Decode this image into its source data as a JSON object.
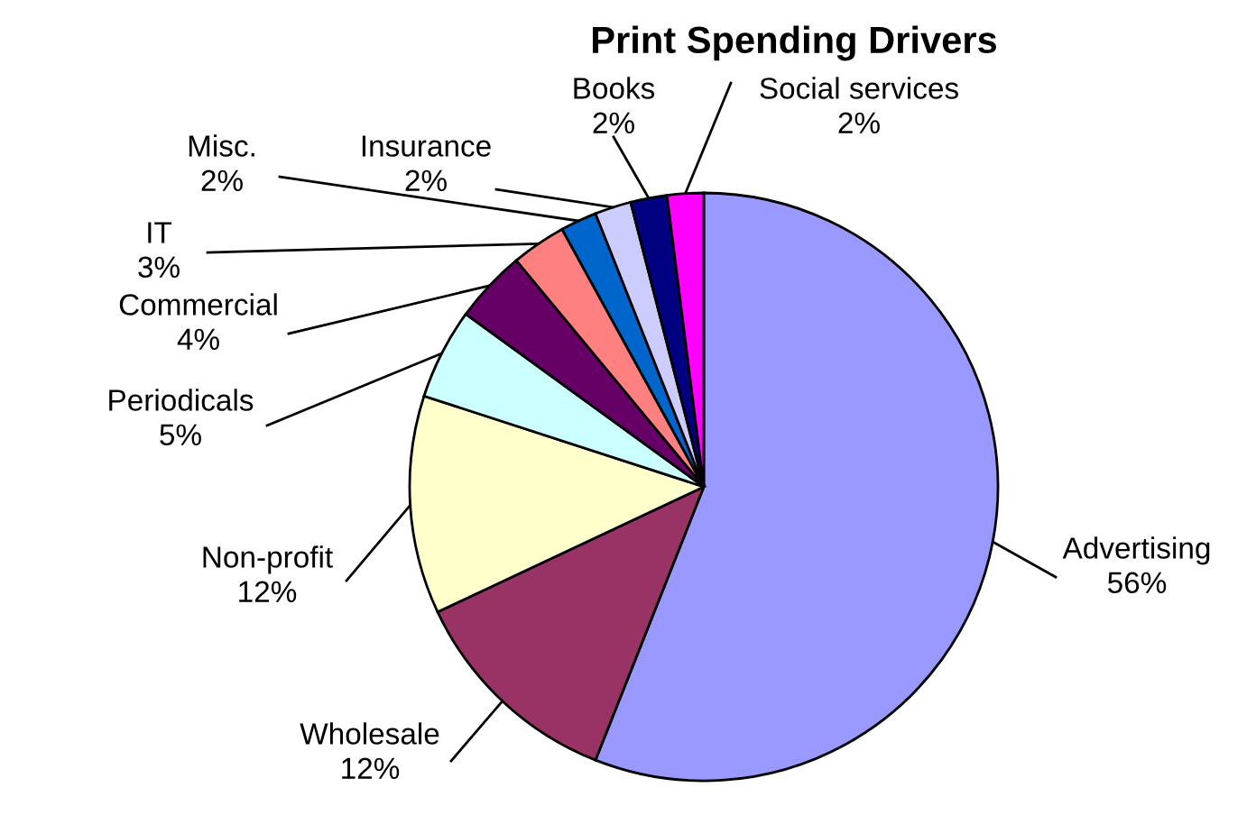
{
  "chart_data": {
    "type": "pie",
    "title": "Print Spending Drivers",
    "categories": [
      "Advertising",
      "Wholesale",
      "Non-profit",
      "Periodicals",
      "Commercial",
      "IT",
      "Misc.",
      "Insurance",
      "Books",
      "Social services"
    ],
    "values": [
      56,
      12,
      12,
      5,
      4,
      3,
      2,
      2,
      2,
      2
    ],
    "value_labels": [
      "56%",
      "12%",
      "12%",
      "5%",
      "4%",
      "3%",
      "2%",
      "2%",
      "2%",
      "2%"
    ],
    "colors": [
      "#9999ff",
      "#993366",
      "#ffffcc",
      "#ccffff",
      "#660066",
      "#ff8080",
      "#0066cc",
      "#ccccff",
      "#000080",
      "#ff00ff"
    ],
    "legend": false
  }
}
